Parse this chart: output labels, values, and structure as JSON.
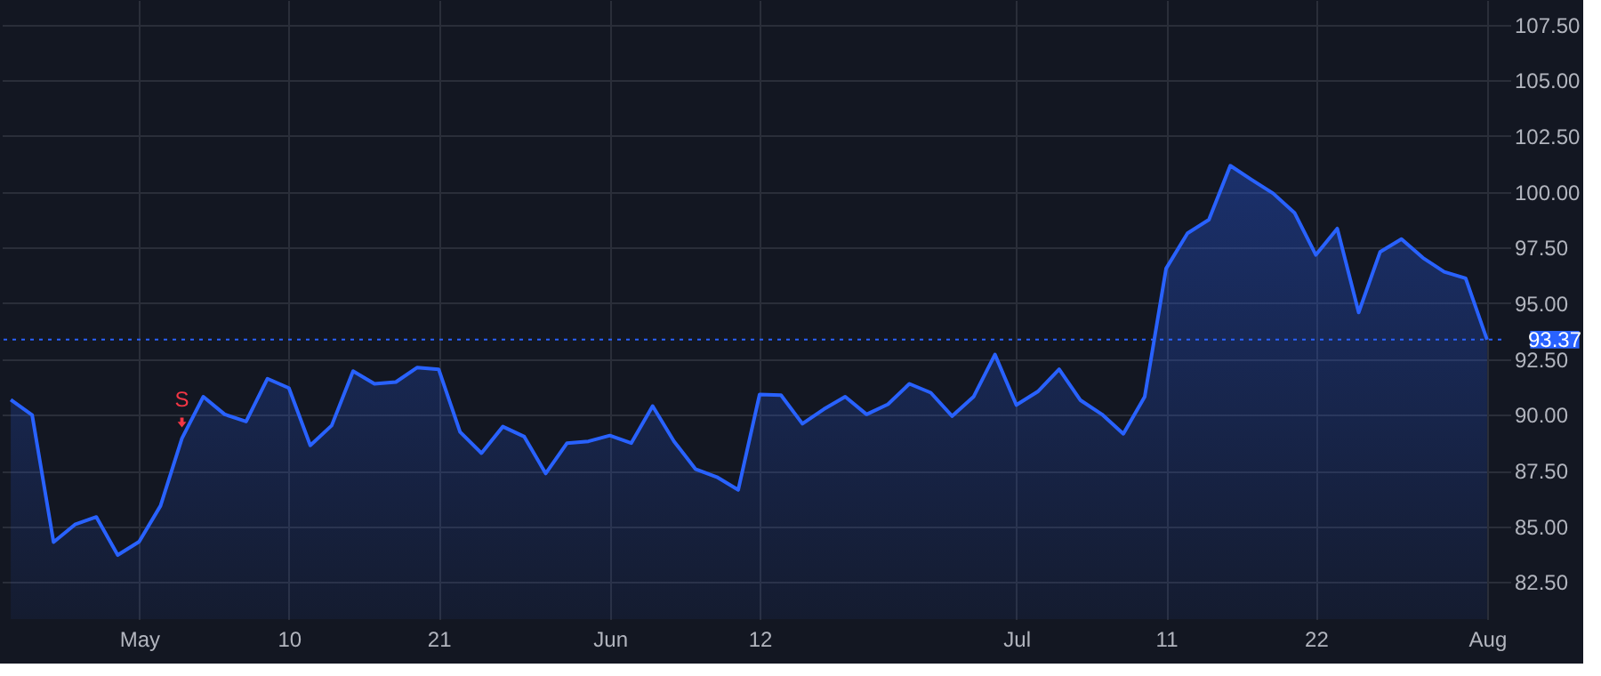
{
  "chart_data": {
    "type": "area",
    "categories": [
      null,
      null,
      null,
      null,
      null,
      null,
      "May",
      null,
      null,
      null,
      null,
      null,
      null,
      "10",
      null,
      null,
      null,
      null,
      null,
      null,
      "21",
      null,
      null,
      null,
      null,
      null,
      null,
      null,
      "Jun",
      null,
      null,
      null,
      null,
      null,
      null,
      "12",
      null,
      null,
      null,
      null,
      null,
      null,
      null,
      null,
      null,
      null,
      null,
      "Jul",
      null,
      null,
      null,
      null,
      null,
      null,
      "11",
      null,
      null,
      null,
      null,
      null,
      null,
      "22",
      null,
      null,
      null,
      null,
      null,
      null,
      null,
      "Aug"
    ],
    "series": [
      {
        "color": "#2962ff",
        "values": [
          90.68,
          89.99,
          84.29,
          85.08,
          85.42,
          83.71,
          84.31,
          85.92,
          88.94,
          90.81,
          90.02,
          89.7,
          91.62,
          91.2,
          88.63,
          89.52,
          91.96,
          91.39,
          91.47,
          92.12,
          92.04,
          89.23,
          88.28,
          89.47,
          89.02,
          87.37,
          88.73,
          88.81,
          89.07,
          88.73,
          90.39,
          88.81,
          87.57,
          87.21,
          86.63,
          90.91,
          90.88,
          89.6,
          90.25,
          90.81,
          90.02,
          90.47,
          91.39,
          90.99,
          89.94,
          90.81,
          92.7,
          90.44,
          91.04,
          92.04,
          90.65,
          90.02,
          89.15,
          90.81,
          96.56,
          98.14,
          98.75,
          101.17,
          100.54,
          99.93,
          99.06,
          97.17,
          98.35,
          94.59,
          97.3,
          97.88,
          97.04,
          96.41,
          96.12,
          93.37
        ]
      }
    ],
    "ylim": [
      80.84,
      108.6
    ],
    "yticks": [
      {
        "value": 82.5,
        "label": "82.50"
      },
      {
        "value": 85,
        "label": "85.00"
      },
      {
        "value": 87.5,
        "label": "87.50"
      },
      {
        "value": 90,
        "label": "90.00"
      },
      {
        "value": 92.5,
        "label": "92.50"
      },
      {
        "value": 95,
        "label": "95.00"
      },
      {
        "value": 97.5,
        "label": "97.50"
      },
      {
        "value": 100,
        "label": "100.00"
      },
      {
        "value": 102.5,
        "label": "102.50"
      },
      {
        "value": 105,
        "label": "105.00"
      },
      {
        "value": 107.5,
        "label": "107.50"
      }
    ],
    "grid": true,
    "ref_lines": [
      {
        "axis": "y",
        "value": 93.37,
        "label": "93.37",
        "color": "#2962ff",
        "line_style": "dotted"
      }
    ],
    "annotations": [
      {
        "text": "S",
        "y": 88.94
      }
    ]
  }
}
